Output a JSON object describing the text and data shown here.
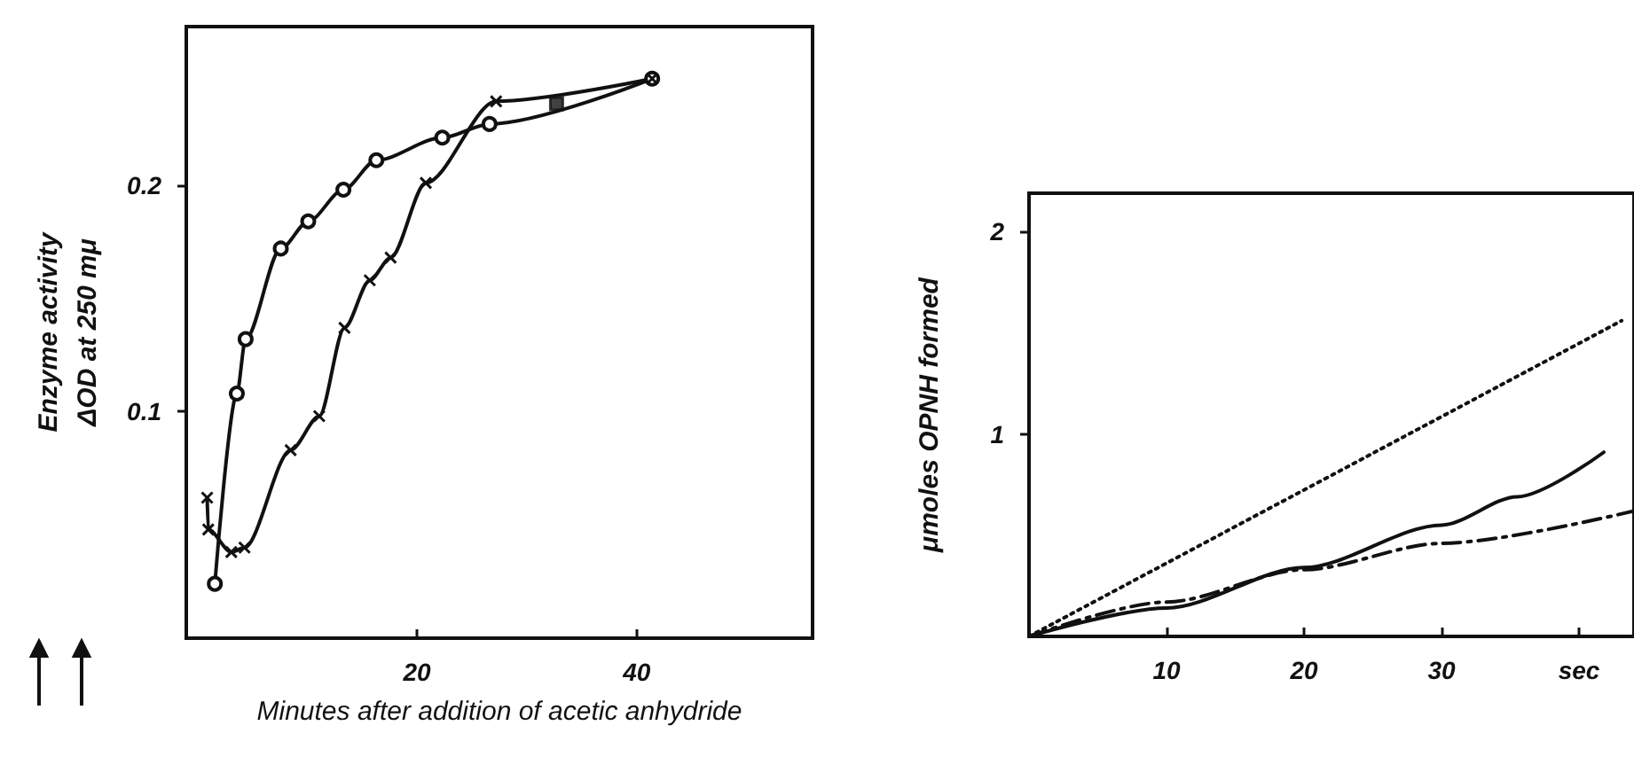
{
  "chart_data": [
    {
      "type": "line",
      "xlabel": "Minutes after addition of acetic anhydride",
      "ylabel": "Enzyme activity\nΔOD at 250 mμ",
      "xlim": [
        -1,
        56
      ],
      "xticks": [
        20,
        40
      ],
      "ylim": [
        0,
        0.27
      ],
      "yticks": [
        0.1,
        0.2
      ],
      "grid": false,
      "series": [
        {
          "color": "#111111",
          "marker": "circle",
          "line_style": "solid",
          "x": [
            1.6,
            3.6,
            4.4,
            7.6,
            10.1,
            13.3,
            16.3,
            22.3,
            26.6,
            41.4
          ],
          "values": [
            0.024,
            0.108,
            0.132,
            0.172,
            0.184,
            0.198,
            0.211,
            0.221,
            0.227,
            0.247
          ]
        },
        {
          "color": "#111111",
          "marker": "cross",
          "line_style": "solid",
          "x": [
            0.9,
            1.0,
            3.1,
            4.3,
            8.5,
            11.1,
            13.4,
            15.7,
            17.6,
            20.8,
            27.2,
            41.4
          ],
          "values": [
            0.062,
            0.048,
            0.038,
            0.04,
            0.083,
            0.098,
            0.137,
            0.158,
            0.168,
            0.201,
            0.237,
            0.247
          ]
        },
        {
          "type": "scatter",
          "color": "#111111",
          "marker": "square",
          "x": [
            32.7
          ],
          "values": [
            0.236
          ]
        }
      ]
    },
    {
      "type": "line",
      "ylabel": "μmoles OPNH formed",
      "xlim": [
        0,
        44
      ],
      "xticks": [
        10,
        20,
        30,
        {
          "value": 40,
          "label": "sec"
        }
      ],
      "ylim": [
        0,
        2.19
      ],
      "yticks": [
        1,
        2
      ],
      "grid": false,
      "series": [
        {
          "color": "#111111",
          "marker": "none",
          "line_style": "dotted",
          "x": [
            0,
            43.1
          ],
          "values": [
            0,
            1.56
          ]
        },
        {
          "color": "#111111",
          "marker": "none",
          "line_style": "solid",
          "x": [
            0,
            10,
            20,
            30,
            35.5,
            41.8
          ],
          "values": [
            0,
            0.14,
            0.34,
            0.55,
            0.69,
            0.91
          ]
        },
        {
          "color": "#111111",
          "marker": "none",
          "line_style": "dashed",
          "x": [
            0,
            10,
            20,
            30,
            44
          ],
          "values": [
            0,
            0.17,
            0.33,
            0.46,
            0.62
          ]
        }
      ]
    }
  ]
}
